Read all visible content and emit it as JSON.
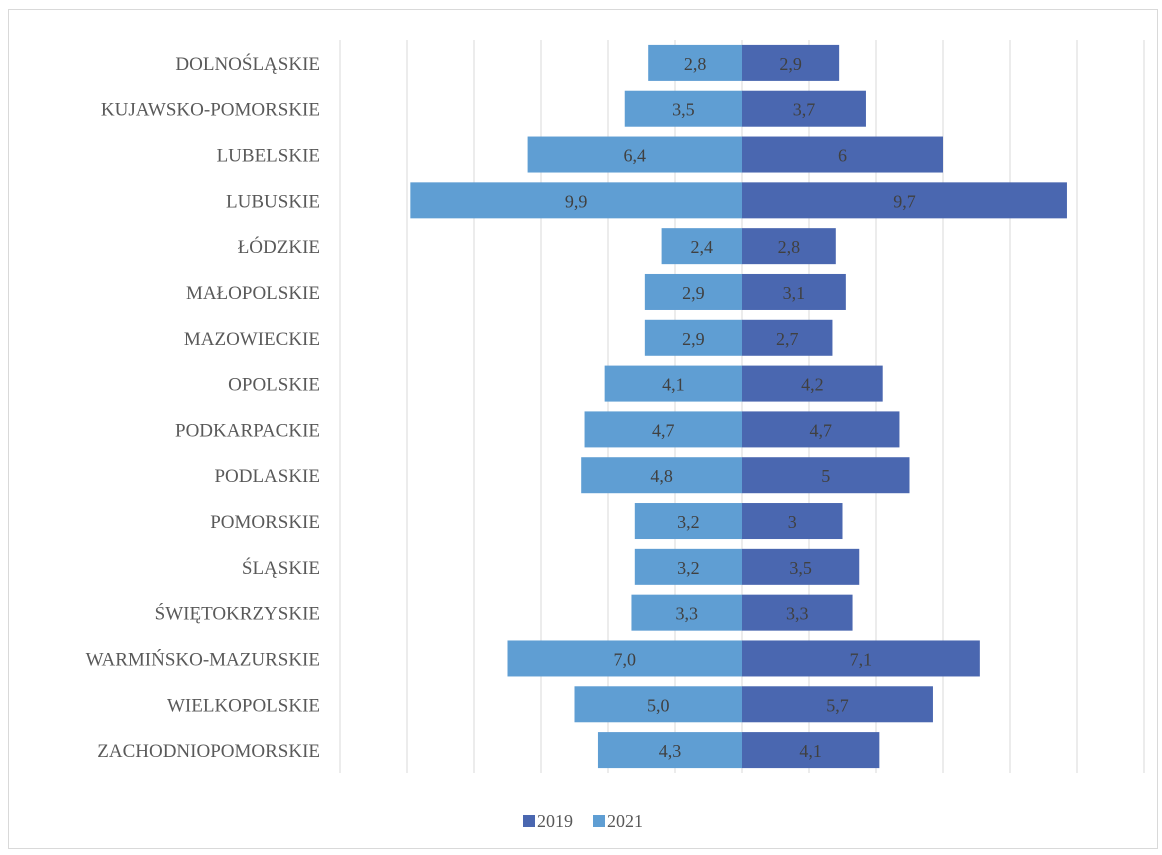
{
  "chart_data": {
    "type": "bar",
    "orientation": "horizontal-butterfly",
    "categories": [
      "DOLNOŚLĄSKIE",
      "KUJAWSKO-POMORSKIE",
      "LUBELSKIE",
      "LUBUSKIE",
      "ŁÓDZKIE",
      "MAŁOPOLSKIE",
      "MAZOWIECKIE",
      "OPOLSKIE",
      "PODKARPACKIE",
      "PODLASKIE",
      "POMORSKIE",
      "ŚLĄSKIE",
      "ŚWIĘTOKRZYSKIE",
      "WARMIŃSKO-MAZURSKIE",
      "WIELKOPOLSKIE",
      "ZACHODNIOPOMORSKIE"
    ],
    "series": [
      {
        "name": "2019",
        "side": "right",
        "color": "#4a67b0",
        "values": [
          2.9,
          3.7,
          6,
          9.7,
          2.8,
          3.1,
          2.7,
          4.2,
          4.7,
          5,
          3,
          3.5,
          3.3,
          7.1,
          5.7,
          4.1
        ],
        "labels": [
          "2,9",
          "3,7",
          "6",
          "9,7",
          "2,8",
          "3,1",
          "2,7",
          "4,2",
          "4,7",
          "5",
          "3",
          "3,5",
          "3,3",
          "7,1",
          "5,7",
          "4,1"
        ]
      },
      {
        "name": "2021",
        "side": "left",
        "color": "#5f9ed3",
        "values": [
          2.8,
          3.5,
          6.4,
          9.9,
          2.4,
          2.9,
          2.9,
          4.1,
          4.7,
          4.8,
          3.2,
          3.2,
          3.3,
          7.0,
          5.0,
          4.3
        ],
        "labels": [
          "2,8",
          "3,5",
          "6,4",
          "9,9",
          "2,4",
          "2,9",
          "2,9",
          "4,1",
          "4,7",
          "4,8",
          "3,2",
          "3,2",
          "3,3",
          "7,0",
          "5,0",
          "4,3"
        ]
      }
    ],
    "xlim": [
      -12,
      12
    ],
    "grid_step": 2,
    "grid": true,
    "legend_position": "bottom"
  }
}
